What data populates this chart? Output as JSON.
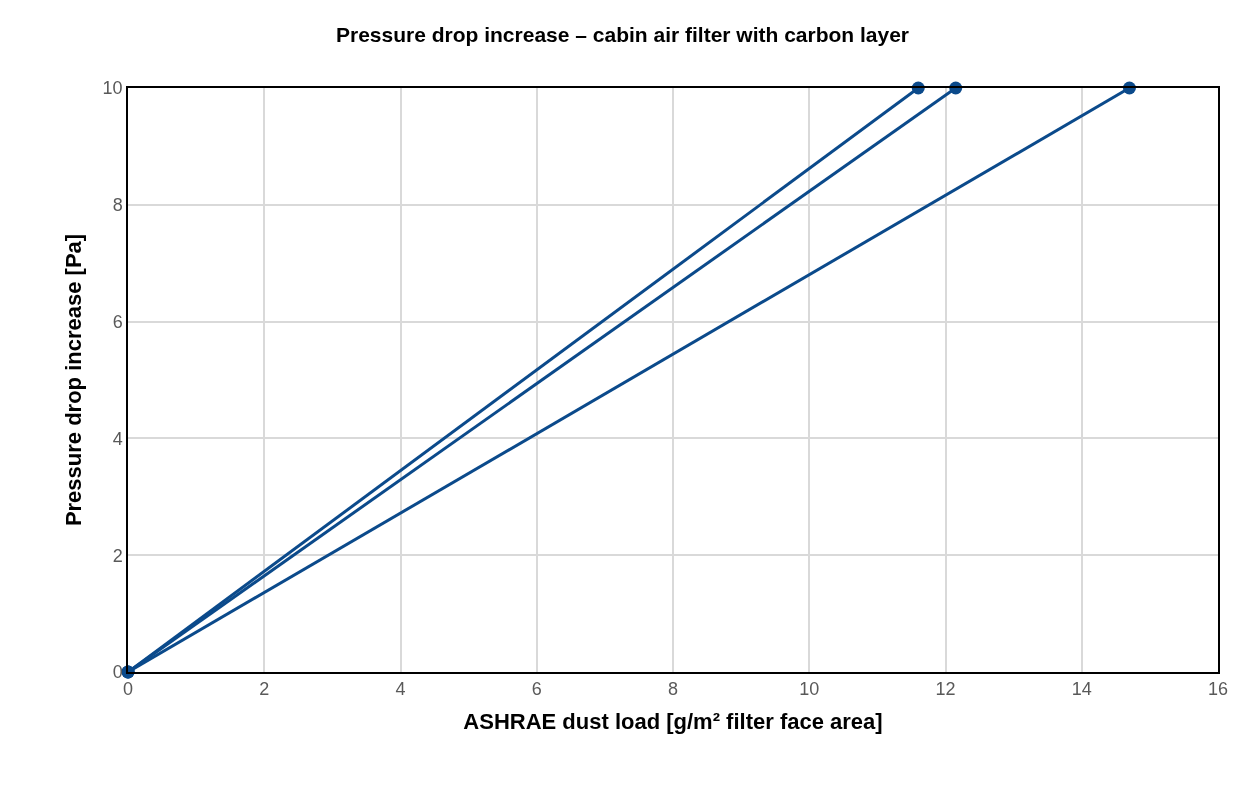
{
  "chart_data": {
    "type": "line",
    "title": "Pressure drop increase – cabin air filter with carbon layer",
    "xlabel": "ASHRAE dust load [g/m² filter face area]",
    "ylabel": "Pressure drop increase [Pa]",
    "series": [
      {
        "color": "#0b4a8b",
        "x": [
          0,
          11.6
        ],
        "values": [
          0,
          10
        ]
      },
      {
        "color": "#0b4a8b",
        "x": [
          0,
          12.15
        ],
        "values": [
          0,
          10
        ]
      },
      {
        "color": "#0b4a8b",
        "x": [
          0,
          14.7
        ],
        "values": [
          0,
          10
        ]
      }
    ],
    "xlim": [
      0,
      16
    ],
    "xticks": [
      0,
      2,
      4,
      6,
      8,
      10,
      12,
      14,
      16
    ],
    "ylim": [
      0,
      10
    ],
    "yticks": [
      0,
      2,
      4,
      6,
      8,
      10
    ],
    "grid": true,
    "marker": "circle",
    "line_style": "solid"
  }
}
